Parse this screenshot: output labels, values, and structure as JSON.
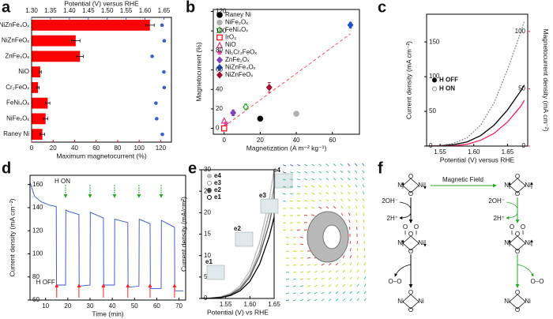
{
  "chart_data": [
    {
      "panel": "a",
      "type": "bar",
      "orientation": "horizontal",
      "categories": [
        "NiZnFe₄Oₓ",
        "NiZnFeOₓ",
        "ZnFe₂Oₓ",
        "NiO",
        "Cr₂FeOₓ",
        "FeNi₄Oₓ",
        "NiFe₂Oₓ",
        "Raney Ni"
      ],
      "values": [
        110,
        41,
        45,
        8,
        6,
        15,
        13,
        10
      ],
      "errors": [
        4,
        4,
        3,
        1,
        1,
        2,
        2,
        2
      ],
      "color": "#ff0000",
      "xlim": [
        0,
        130
      ],
      "xticks": [
        0,
        20,
        40,
        60,
        80,
        100,
        120
      ],
      "xlabel": "Maximum magnetocurrent (%)",
      "x2_values": [
        1.645,
        1.651,
        1.619,
        1.65,
        1.651,
        1.629,
        1.631,
        1.646
      ],
      "x2_color": "#3a5fcd",
      "x2lim": [
        1.3,
        1.67
      ],
      "x2ticks": [
        {
          "value": 1.3,
          "label": "1.30"
        },
        {
          "value": 1.35,
          "label": "1.35"
        },
        {
          "value": 1.4,
          "label": "1.40"
        },
        {
          "value": 1.45,
          "label": "1.45"
        },
        {
          "value": 1.5,
          "label": "1.50"
        },
        {
          "value": 1.55,
          "label": "1.55"
        },
        {
          "value": 1.6,
          "label": "1.60"
        },
        {
          "value": 1.65,
          "label": "1.65"
        }
      ],
      "x2label": "Potential (V) versus RHE"
    },
    {
      "panel": "b",
      "type": "scatter",
      "legend": "upper left",
      "xlim": [
        -6,
        75
      ],
      "xticks": [
        0,
        20,
        40,
        60
      ],
      "xlabel": "Magnetization (A m⁻² kg⁻¹)",
      "ylim": [
        -6,
        122
      ],
      "yticks": [
        0,
        20,
        40,
        60,
        80,
        100,
        120
      ],
      "ylabel": "Magnetocurrent (%)",
      "trendline": {
        "x": [
          0,
          70
        ],
        "y": [
          2,
          97
        ],
        "color": "#ff5050"
      },
      "series": [
        {
          "name": "Raney Ni",
          "color": "#000000",
          "marker": "circle",
          "x": [
            20
          ],
          "values": [
            10
          ],
          "errors": [
            2
          ]
        },
        {
          "name": "NiFe₂Oₓ",
          "color": "#b0b0b0",
          "marker": "circle",
          "x": [
            40
          ],
          "values": [
            15
          ],
          "errors": [
            2
          ]
        },
        {
          "name": "FeNi₄Oₓ",
          "color": "#22aa22",
          "marker": "diamond-open",
          "x": [
            12
          ],
          "values": [
            22
          ],
          "errors": [
            3
          ]
        },
        {
          "name": "IrO₂",
          "color": "#ff0000",
          "marker": "square-open",
          "x": [
            0
          ],
          "values": [
            0
          ],
          "errors": [
            1
          ]
        },
        {
          "name": "NiO",
          "color": "#d04080",
          "marker": "triangle-open",
          "x": [
            0
          ],
          "values": [
            8
          ],
          "errors": [
            1
          ]
        },
        {
          "name": "Ni₁Cr₂FeOₓ",
          "color": "#e0409a",
          "marker": "star",
          "x": [
            1
          ],
          "values": [
            5
          ],
          "errors": [
            1
          ]
        },
        {
          "name": "ZnFe₂Oₓ",
          "color": "#8040c0",
          "marker": "diamond",
          "x": [
            5
          ],
          "values": [
            16
          ],
          "errors": [
            3
          ]
        },
        {
          "name": "NiZnFe₄Oₓ",
          "color": "#2050c0",
          "marker": "diamond",
          "x": [
            70
          ],
          "values": [
            106
          ],
          "errors": [
            3
          ]
        },
        {
          "name": "NiZnFeOₓ",
          "color": "#a01030",
          "marker": "diamond",
          "x": [
            25
          ],
          "values": [
            42
          ],
          "errors": [
            5
          ]
        }
      ]
    },
    {
      "panel": "c",
      "type": "line",
      "legend": "center left",
      "x": [
        1.53,
        1.55,
        1.57,
        1.59,
        1.61,
        1.63,
        1.65,
        1.67,
        1.675
      ],
      "xlim": [
        1.53,
        1.68
      ],
      "xticks": [
        {
          "value": 1.55,
          "label": "1.55"
        },
        {
          "value": 1.6,
          "label": "1.60"
        },
        {
          "value": 1.65,
          "label": "1.65"
        }
      ],
      "xlabel": "Potential (V) versus RHE",
      "ylim": [
        0,
        190
      ],
      "yticks": [
        0,
        50,
        100,
        150
      ],
      "ylabel": "Current density (mA cm⁻²)",
      "y2lim": [
        0,
        115
      ],
      "y2ticks": [
        0,
        50,
        100
      ],
      "y2label": "Magnetocurrent density (mA cm⁻²)",
      "y2color": "#ff2060",
      "series": [
        {
          "name": "H OFF",
          "color": "#000000",
          "values": [
            0,
            0.5,
            2,
            6,
            15,
            30,
            52,
            80,
            88
          ]
        },
        {
          "name": "H ON",
          "color": "#909090",
          "values": [
            0,
            1,
            4,
            12,
            30,
            62,
            110,
            165,
            180
          ]
        },
        {
          "name": null,
          "color": "#ff2060",
          "axis": "y2",
          "values": [
            0,
            0,
            0.3,
            1.5,
            5,
            11,
            21,
            35,
            40
          ]
        }
      ]
    },
    {
      "panel": "d",
      "type": "line",
      "color": "#3050d0",
      "x": [
        3,
        5,
        8,
        12,
        14.8,
        14.9,
        19,
        19.1,
        20,
        25,
        25.1,
        30,
        30.1,
        36,
        36.1,
        41,
        41.1,
        47,
        47.1,
        52,
        52.1,
        57,
        57.1,
        62,
        62.1,
        68,
        68.1,
        72
      ],
      "values": [
        162,
        150,
        145,
        142,
        141,
        73,
        73,
        138,
        137,
        134,
        72,
        73,
        136,
        131,
        73,
        73,
        130,
        127,
        71,
        72,
        130,
        126,
        70,
        70,
        129,
        123,
        68,
        68
      ],
      "xlim": [
        3,
        73
      ],
      "xticks": [
        10,
        20,
        30,
        40,
        50,
        60,
        70
      ],
      "xlabel": "Time (min)",
      "ylim": [
        60,
        168
      ],
      "yticks": [
        60,
        80,
        100,
        120,
        140,
        160
      ],
      "ylabel": "Current density (mA cm⁻²)",
      "on_times": [
        19,
        30,
        41,
        52,
        62
      ],
      "off_times": [
        15,
        25,
        36,
        47,
        57,
        68
      ],
      "on_label": "H ON",
      "off_label": "H OFF"
    },
    {
      "panel": "e",
      "type": "line",
      "legend": "upper left",
      "x": [
        1.5,
        1.52,
        1.54,
        1.56,
        1.58,
        1.6,
        1.62,
        1.64,
        1.65
      ],
      "xlim": [
        1.5,
        1.65
      ],
      "xticks": [
        {
          "value": 1.55,
          "label": "1.55"
        },
        {
          "value": 1.6,
          "label": "1.60"
        },
        {
          "value": 1.65,
          "label": "1.65"
        }
      ],
      "xlabel": "Potential (V) vs RHE",
      "ylim": [
        0,
        30
      ],
      "yticks": [
        0,
        5,
        10,
        15,
        20,
        25,
        30
      ],
      "ylabel": "Current density (mA/cm²)",
      "series": [
        {
          "name": "e4",
          "color": "#bbbbbb",
          "values": [
            0,
            0.1,
            0.4,
            1.2,
            3,
            6.5,
            13,
            23,
            30
          ]
        },
        {
          "name": "e3",
          "color": "#999999",
          "values": [
            0,
            0.1,
            0.3,
            1,
            2.5,
            5.5,
            11,
            20,
            26
          ]
        },
        {
          "name": "e2",
          "color": "#555555",
          "values": [
            0,
            0.1,
            0.3,
            0.9,
            2.2,
            5,
            10,
            17.5,
            23
          ]
        },
        {
          "name": "e1",
          "color": "#000000",
          "values": [
            0,
            0.1,
            0.2,
            0.7,
            1.8,
            4,
            8,
            14.5,
            19
          ]
        }
      ]
    }
  ],
  "diagram": {
    "panel": "f",
    "field": "Magnetic Field",
    "oh": "2OH⁻",
    "h": "2H⁺",
    "ni": "Ni",
    "o": "O",
    "oo": "O–O"
  }
}
